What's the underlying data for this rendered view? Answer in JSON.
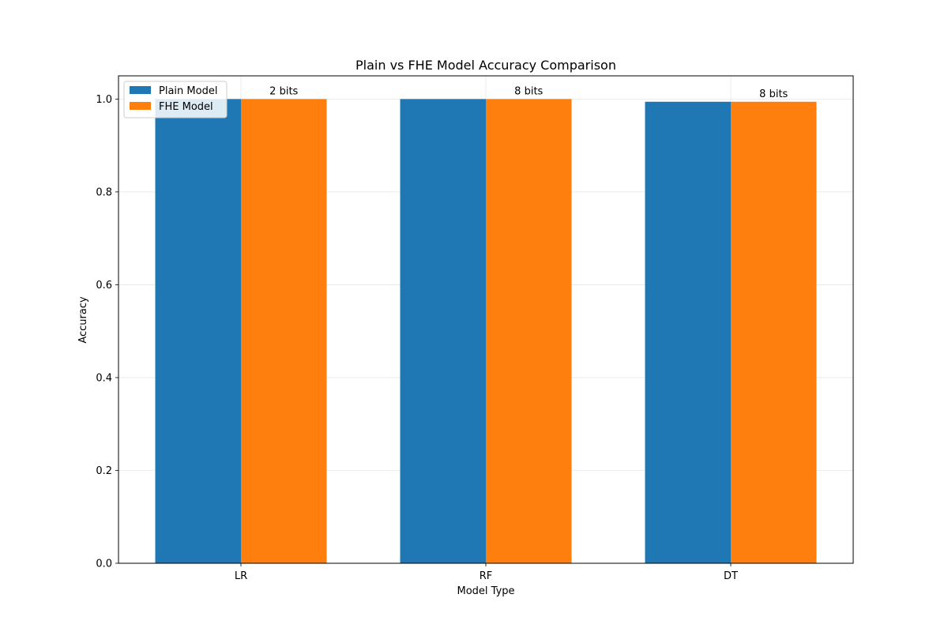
{
  "chart_data": {
    "type": "bar",
    "title": "Plain vs FHE Model Accuracy Comparison",
    "xlabel": "Model Type",
    "ylabel": "Accuracy",
    "categories": [
      "LR",
      "RF",
      "DT"
    ],
    "series": [
      {
        "name": "Plain Model",
        "values": [
          1.0,
          1.0,
          0.9942
        ],
        "color": "#1f77b4"
      },
      {
        "name": "FHE Model",
        "values": [
          1.0,
          1.0,
          0.9942
        ],
        "color": "#ff7f0e"
      }
    ],
    "bar_labels": [
      "2 bits",
      "8 bits",
      "8 bits"
    ],
    "ylim": [
      0,
      1.05
    ],
    "yticks": [
      0.0,
      0.2,
      0.4,
      0.6,
      0.8,
      1.0
    ],
    "ytick_labels": [
      "0.0",
      "0.2",
      "0.4",
      "0.6",
      "0.8",
      "1.0"
    ],
    "grid": true,
    "legend_position": "top-left"
  }
}
